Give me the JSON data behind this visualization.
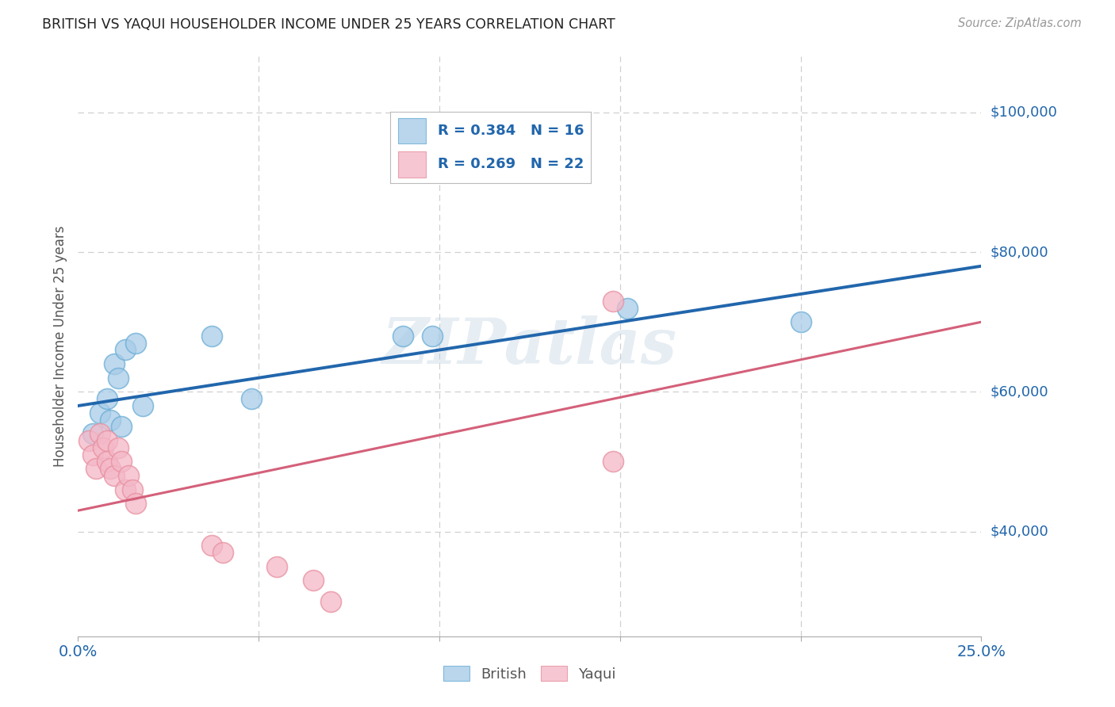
{
  "title": "BRITISH VS YAQUI HOUSEHOLDER INCOME UNDER 25 YEARS CORRELATION CHART",
  "source": "Source: ZipAtlas.com",
  "ylabel": "Householder Income Under 25 years",
  "xlim": [
    0.0,
    0.25
  ],
  "ylim": [
    25000,
    108000
  ],
  "british_color": "#a8cce8",
  "british_edge_color": "#6aaed6",
  "yaqui_color": "#f4b8c8",
  "yaqui_edge_color": "#e8909f",
  "british_line_color": "#2166ac",
  "yaqui_line_color": "#d4607a",
  "british_R": 0.384,
  "british_N": 16,
  "yaqui_R": 0.269,
  "yaqui_N": 22,
  "watermark": "ZIPatlas",
  "background_color": "#ffffff",
  "grid_color": "#d0d0d0",
  "title_color": "#222222",
  "axis_label_color": "#555555",
  "right_label_color": "#2166ac",
  "legend_text_color": "#2166ac",
  "source_color": "#999999",
  "ytick_positions": [
    40000,
    60000,
    80000,
    100000
  ],
  "ytick_labels": [
    "$40,000",
    "$60,000",
    "$80,000",
    "$100,000"
  ],
  "british_x": [
    0.004,
    0.006,
    0.008,
    0.009,
    0.01,
    0.011,
    0.012,
    0.013,
    0.016,
    0.018,
    0.037,
    0.048,
    0.09,
    0.098,
    0.152,
    0.2
  ],
  "british_y": [
    54000,
    57000,
    59000,
    56000,
    64000,
    62000,
    55000,
    66000,
    67000,
    58000,
    68000,
    59000,
    68000,
    68000,
    72000,
    70000
  ],
  "yaqui_x": [
    0.003,
    0.004,
    0.005,
    0.006,
    0.007,
    0.008,
    0.008,
    0.009,
    0.01,
    0.011,
    0.012,
    0.013,
    0.014,
    0.015,
    0.016,
    0.037,
    0.04,
    0.055,
    0.065,
    0.07,
    0.148,
    0.148
  ],
  "yaqui_y": [
    53000,
    51000,
    49000,
    54000,
    52000,
    50000,
    53000,
    49000,
    48000,
    52000,
    50000,
    46000,
    48000,
    46000,
    44000,
    38000,
    37000,
    35000,
    33000,
    30000,
    73000,
    50000
  ],
  "british_line_x": [
    0.0,
    0.25
  ],
  "british_line_y": [
    58000,
    78000
  ],
  "yaqui_line_x": [
    0.0,
    0.25
  ],
  "yaqui_line_y": [
    43000,
    70000
  ]
}
